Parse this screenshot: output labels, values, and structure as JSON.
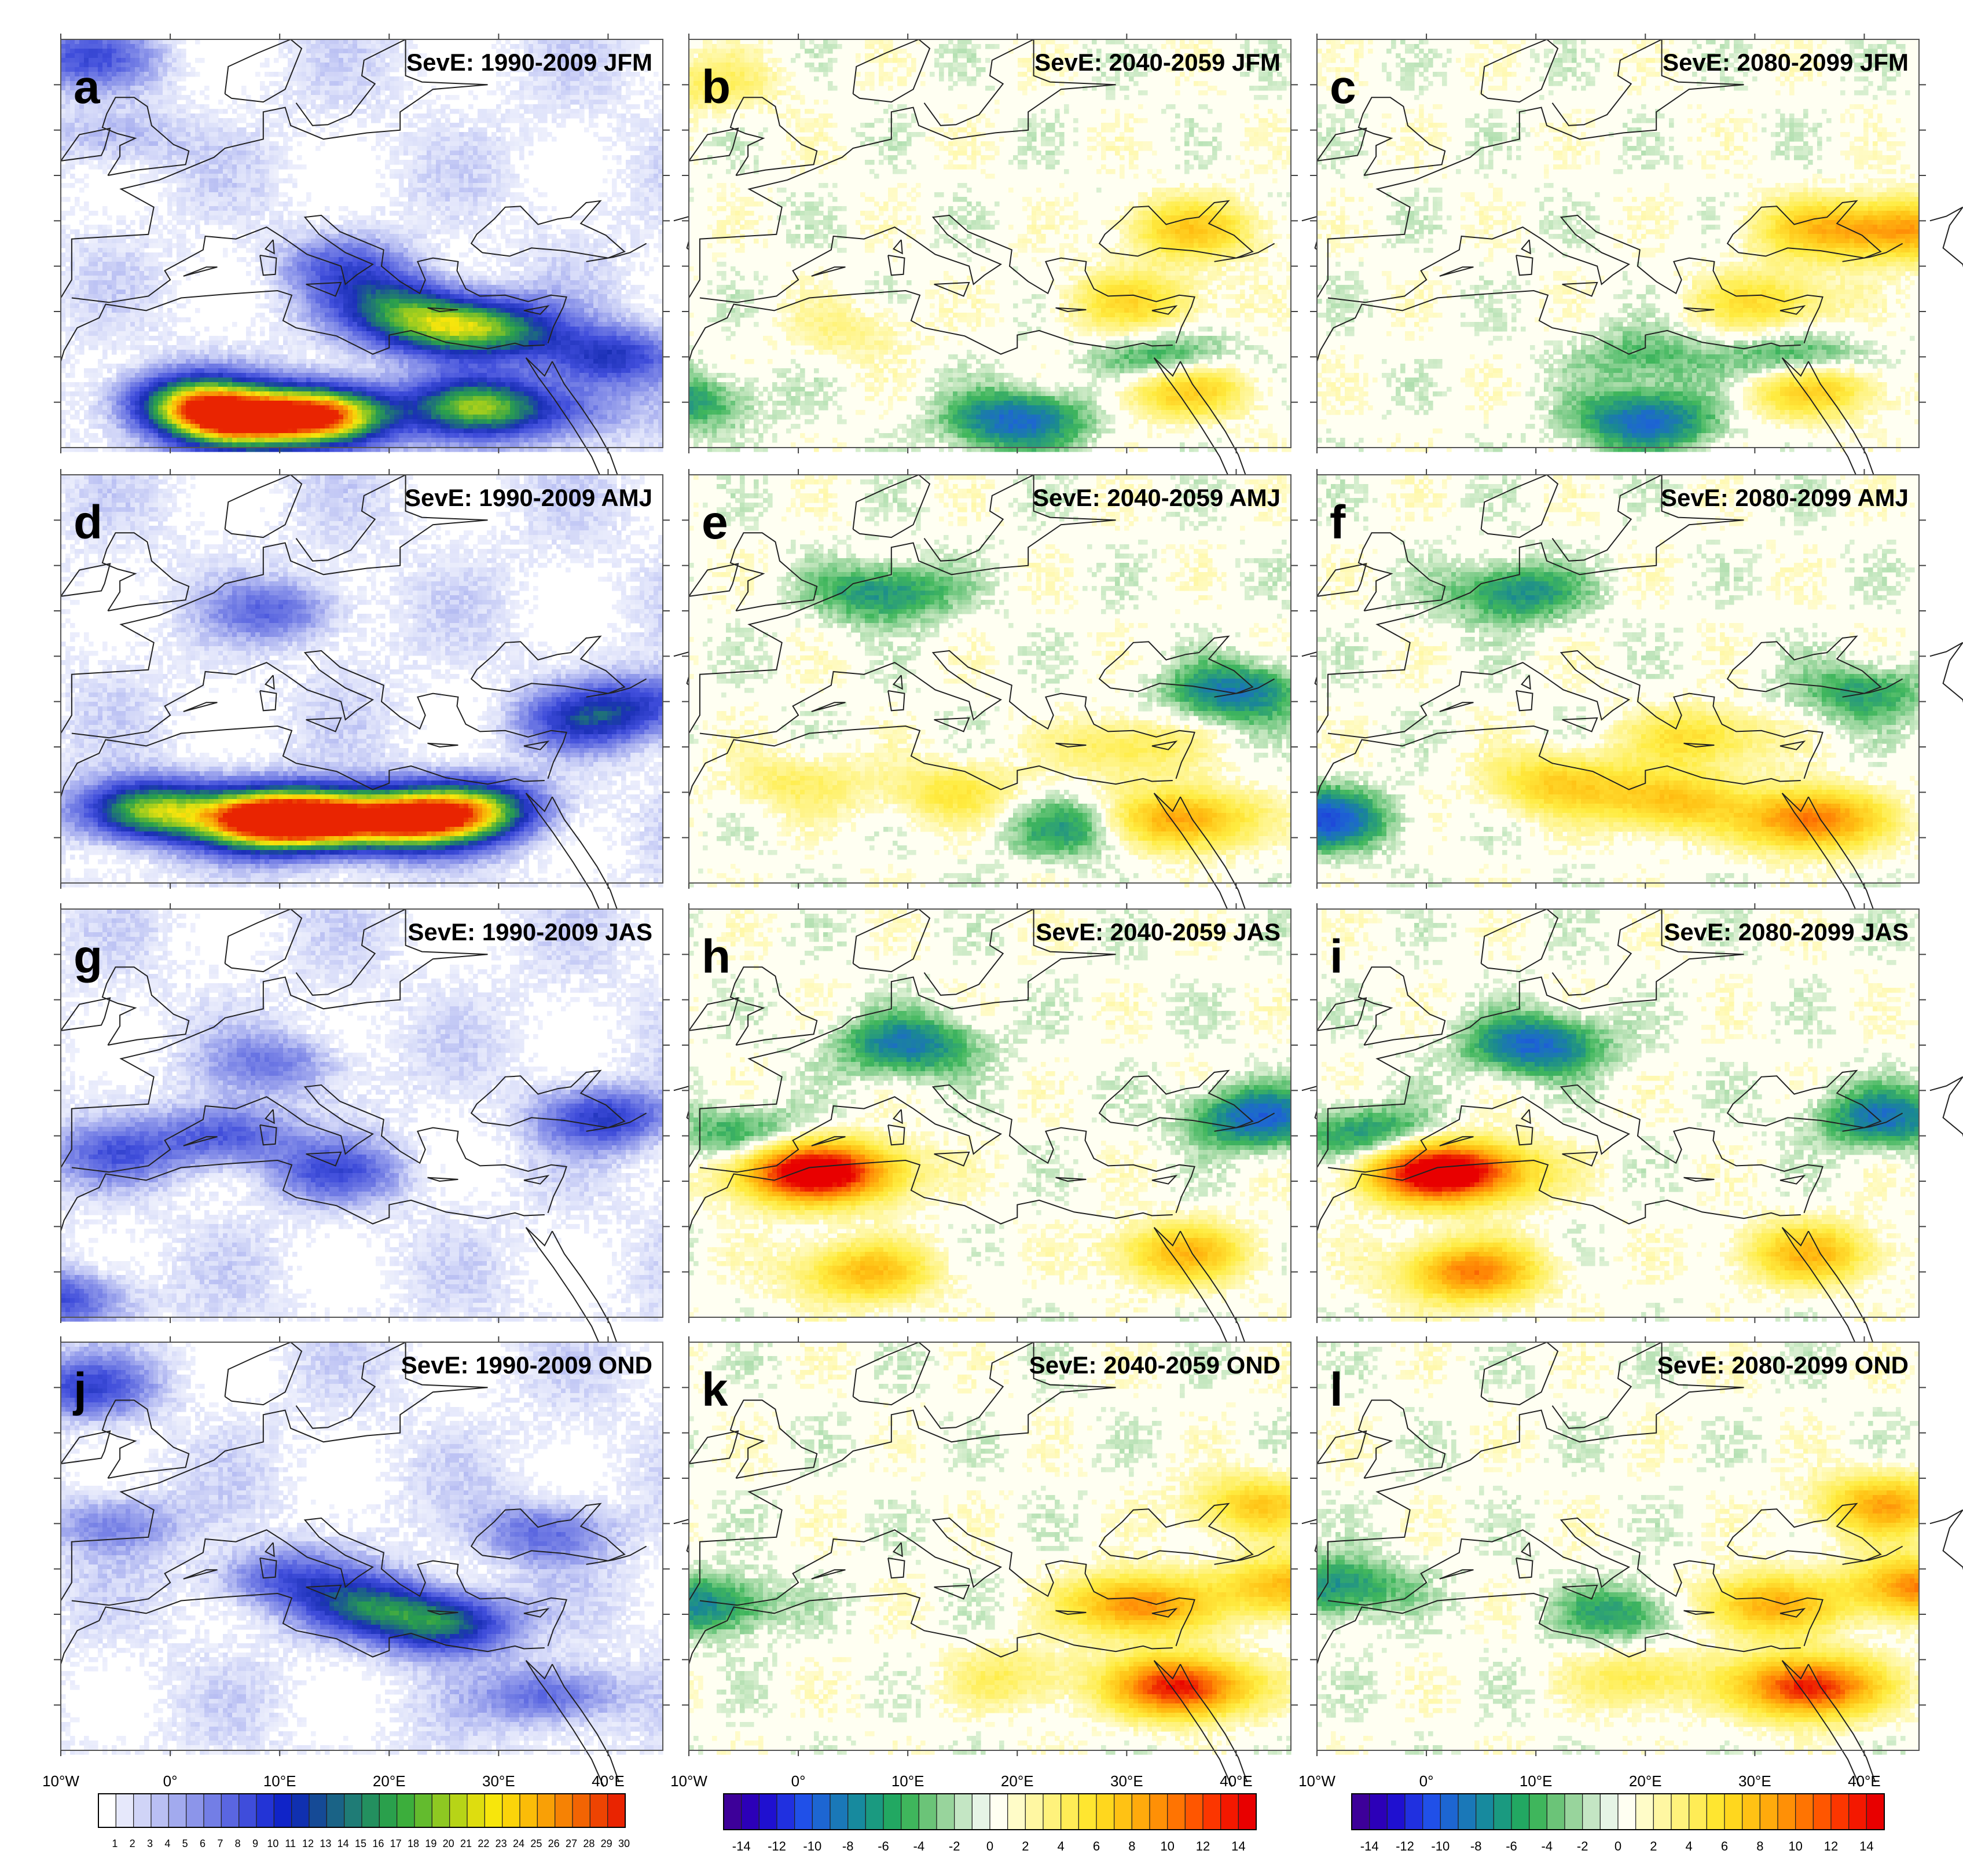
{
  "chart_data": [
    {
      "type": "heatmap",
      "letter": "a",
      "title": "SevE: 1990-2009 JFM",
      "period": "1990-2009",
      "season": "JFM",
      "field": "present",
      "palette": "seq",
      "hotspots": [
        {
          "lon": 6,
          "lat": 23,
          "v": 24
        },
        {
          "lon": 14,
          "lat": 23.5,
          "v": 29
        },
        {
          "lon": 2,
          "lat": 25,
          "v": 17
        },
        {
          "lon": 28,
          "lat": 24.5,
          "v": 17
        },
        {
          "lon": 24,
          "lat": 33.5,
          "v": 14
        },
        {
          "lon": 30,
          "lat": 33,
          "v": 13
        },
        {
          "lon": 20,
          "lat": 36,
          "v": 9
        },
        {
          "lon": 16,
          "lat": 40,
          "v": 6
        },
        {
          "lon": -8,
          "lat": 63,
          "v": 7
        },
        {
          "lon": -5,
          "lat": 54,
          "v": 3
        },
        {
          "lon": 40,
          "lat": 30,
          "v": 10
        },
        {
          "lon": 36,
          "lat": 24,
          "v": 6
        }
      ]
    },
    {
      "type": "heatmap",
      "letter": "b",
      "title": "SevE: 2040-2059 JFM",
      "period": "2040-2059",
      "season": "JFM",
      "field": "change",
      "palette": "div",
      "hotspots": [
        {
          "lon": -8,
          "lat": 60,
          "v": 3
        },
        {
          "lon": 35,
          "lat": 27,
          "v": 9
        },
        {
          "lon": 34,
          "lat": 29,
          "v": -7
        },
        {
          "lon": 36,
          "lat": 44,
          "v": 6
        },
        {
          "lon": 31,
          "lat": 36,
          "v": 5
        },
        {
          "lon": 20,
          "lat": 23,
          "v": -7
        },
        {
          "lon": -10,
          "lat": 25,
          "v": -4
        },
        {
          "lon": 5,
          "lat": 33,
          "v": 2
        }
      ]
    },
    {
      "type": "heatmap",
      "letter": "c",
      "title": "SevE: 2080-2099 JFM",
      "period": "2080-2099",
      "season": "JFM",
      "field": "change",
      "palette": "div",
      "hotspots": [
        {
          "lon": 35,
          "lat": 27,
          "v": 9
        },
        {
          "lon": 34,
          "lat": 29,
          "v": -7
        },
        {
          "lon": 36,
          "lat": 44,
          "v": 6
        },
        {
          "lon": 31,
          "lat": 36,
          "v": 5
        },
        {
          "lon": 20,
          "lat": 23,
          "v": -7
        },
        {
          "lon": 20,
          "lat": 30,
          "v": -3
        },
        {
          "lon": 44,
          "lat": 44,
          "v": 8
        }
      ]
    },
    {
      "type": "heatmap",
      "letter": "d",
      "title": "SevE: 1990-2009 AMJ",
      "period": "1990-2009",
      "season": "AMJ",
      "field": "present",
      "palette": "seq",
      "hotspots": [
        {
          "lon": 8,
          "lat": 27,
          "v": 26
        },
        {
          "lon": 14,
          "lat": 27,
          "v": 27
        },
        {
          "lon": 22,
          "lat": 27,
          "v": 25
        },
        {
          "lon": -2,
          "lat": 28,
          "v": 19
        },
        {
          "lon": 28,
          "lat": 28,
          "v": 17
        },
        {
          "lon": 10,
          "lat": 50,
          "v": 6
        },
        {
          "lon": 38,
          "lat": 38,
          "v": 9
        },
        {
          "lon": 44,
          "lat": 40,
          "v": 7
        }
      ]
    },
    {
      "type": "heatmap",
      "letter": "e",
      "title": "SevE: 2040-2059 AMJ",
      "period": "2040-2059",
      "season": "AMJ",
      "field": "change",
      "palette": "div",
      "hotspots": [
        {
          "lon": 8,
          "lat": 52,
          "v": -5
        },
        {
          "lon": 14,
          "lat": 30,
          "v": 4
        },
        {
          "lon": 0,
          "lat": 31,
          "v": 3
        },
        {
          "lon": 35,
          "lat": 27,
          "v": 9
        },
        {
          "lon": 25,
          "lat": 26,
          "v": -4
        },
        {
          "lon": 40,
          "lat": 41,
          "v": -6
        },
        {
          "lon": 30,
          "lat": 35,
          "v": 4
        }
      ]
    },
    {
      "type": "heatmap",
      "letter": "f",
      "title": "SevE: 2080-2099 AMJ",
      "period": "2080-2099",
      "season": "AMJ",
      "field": "change",
      "palette": "div",
      "hotspots": [
        {
          "lon": 8,
          "lat": 52,
          "v": -5
        },
        {
          "lon": 12,
          "lat": 31,
          "v": 6
        },
        {
          "lon": 22,
          "lat": 29,
          "v": 7
        },
        {
          "lon": 35,
          "lat": 27,
          "v": 11
        },
        {
          "lon": 25,
          "lat": 36,
          "v": 5
        },
        {
          "lon": -10,
          "lat": 27,
          "v": -8
        },
        {
          "lon": 40,
          "lat": 41,
          "v": -4
        }
      ]
    },
    {
      "type": "heatmap",
      "letter": "g",
      "title": "SevE: 1990-2009 JAS",
      "period": "1990-2009",
      "season": "JAS",
      "field": "present",
      "palette": "seq",
      "hotspots": [
        {
          "lon": 5,
          "lat": 40,
          "v": 8
        },
        {
          "lon": 15,
          "lat": 36,
          "v": 7
        },
        {
          "lon": 10,
          "lat": 48,
          "v": 5
        },
        {
          "lon": 40,
          "lat": 42,
          "v": 9
        },
        {
          "lon": -5,
          "lat": 38,
          "v": 6
        },
        {
          "lon": -10,
          "lat": 22,
          "v": 8
        }
      ]
    },
    {
      "type": "heatmap",
      "letter": "h",
      "title": "SevE: 2040-2059 JAS",
      "period": "2040-2059",
      "season": "JAS",
      "field": "change",
      "palette": "div",
      "hotspots": [
        {
          "lon": 0,
          "lat": 36,
          "v": 13
        },
        {
          "lon": 5,
          "lat": 36,
          "v": 7
        },
        {
          "lon": 10,
          "lat": 50,
          "v": -6
        },
        {
          "lon": 6,
          "lat": 25,
          "v": 7
        },
        {
          "lon": 42,
          "lat": 42,
          "v": -7
        },
        {
          "lon": 35,
          "lat": 27,
          "v": 7
        },
        {
          "lon": -5,
          "lat": 40,
          "v": -4
        }
      ]
    },
    {
      "type": "heatmap",
      "letter": "i",
      "title": "SevE: 2080-2099 JAS",
      "period": "2080-2099",
      "season": "JAS",
      "field": "change",
      "palette": "div",
      "hotspots": [
        {
          "lon": 0,
          "lat": 36,
          "v": 13
        },
        {
          "lon": 5,
          "lat": 36,
          "v": 8
        },
        {
          "lon": 10,
          "lat": 50,
          "v": -7
        },
        {
          "lon": 4,
          "lat": 25,
          "v": 10
        },
        {
          "lon": 42,
          "lat": 42,
          "v": -6
        },
        {
          "lon": 35,
          "lat": 27,
          "v": 7
        },
        {
          "lon": -5,
          "lat": 40,
          "v": -5
        }
      ]
    },
    {
      "type": "heatmap",
      "letter": "j",
      "title": "SevE: 1990-2009 OND",
      "period": "1990-2009",
      "season": "OND",
      "field": "present",
      "palette": "seq",
      "hotspots": [
        {
          "lon": 25,
          "lat": 34,
          "v": 14
        },
        {
          "lon": 18,
          "lat": 36,
          "v": 11
        },
        {
          "lon": -8,
          "lat": 60,
          "v": 8
        },
        {
          "lon": -5,
          "lat": 45,
          "v": 5
        },
        {
          "lon": 35,
          "lat": 26,
          "v": 7
        },
        {
          "lon": 34,
          "lat": 44,
          "v": 6
        },
        {
          "lon": 10,
          "lat": 39,
          "v": 7
        }
      ]
    },
    {
      "type": "heatmap",
      "letter": "k",
      "title": "SevE: 2040-2059 OND",
      "period": "2040-2059",
      "season": "OND",
      "field": "change",
      "palette": "div",
      "hotspots": [
        {
          "lon": 35,
          "lat": 27,
          "v": 14
        },
        {
          "lon": 31,
          "lat": 36,
          "v": 10
        },
        {
          "lon": -8,
          "lat": 36,
          "v": -5
        },
        {
          "lon": 45,
          "lat": 38,
          "v": 8
        },
        {
          "lon": 42,
          "lat": 47,
          "v": 6
        },
        {
          "lon": 20,
          "lat": 28,
          "v": 3
        }
      ]
    },
    {
      "type": "heatmap",
      "letter": "l",
      "title": "SevE: 2080-2099 OND",
      "period": "2080-2099",
      "season": "OND",
      "field": "change",
      "palette": "div",
      "hotspots": [
        {
          "lon": 35,
          "lat": 27,
          "v": 14
        },
        {
          "lon": 31,
          "lat": 36,
          "v": 8
        },
        {
          "lon": -8,
          "lat": 38,
          "v": -5
        },
        {
          "lon": 45,
          "lat": 38,
          "v": 10
        },
        {
          "lon": 42,
          "lat": 47,
          "v": 8
        },
        {
          "lon": 18,
          "lat": 35,
          "v": -4
        },
        {
          "lon": 20,
          "lat": 28,
          "v": 4
        }
      ]
    }
  ],
  "lon_ticks": [
    "10°W",
    "0°",
    "10°E",
    "20°E",
    "30°E",
    "40°E"
  ],
  "lon_values": [
    -10,
    0,
    10,
    20,
    30,
    40
  ],
  "lon_range": [
    -10,
    45
  ],
  "lat_range": [
    20,
    65
  ],
  "colorbar_seq": {
    "labels": [
      "1",
      "2",
      "3",
      "4",
      "5",
      "6",
      "7",
      "8",
      "9",
      "10",
      "11",
      "12",
      "13",
      "14",
      "15",
      "16",
      "17",
      "18",
      "19",
      "20",
      "21",
      "22",
      "23",
      "24",
      "25",
      "26",
      "27",
      "28",
      "29",
      "30"
    ],
    "colors": [
      "#ffffff",
      "#e6e8fb",
      "#d0d4f7",
      "#b9bff3",
      "#a2aaee",
      "#8c95ea",
      "#737ee6",
      "#5a66e1",
      "#3f4ddb",
      "#2334d6",
      "#1024c8",
      "#1030b0",
      "#154a96",
      "#1a6386",
      "#1f7c76",
      "#23905f",
      "#2aa04c",
      "#3cae3c",
      "#63bb2e",
      "#8ec822",
      "#b7d417",
      "#dedd0f",
      "#f7e60c",
      "#fbd40a",
      "#fbbc08",
      "#f9a006",
      "#f68204",
      "#f26403",
      "#ee4402",
      "#e92401"
    ]
  },
  "colorbar_div": {
    "labels": [
      "-14",
      "-12",
      "-10",
      "-8",
      "-6",
      "-4",
      "-2",
      "0",
      "2",
      "4",
      "6",
      "8",
      "10",
      "12",
      "14"
    ],
    "colors": [
      "#3d0099",
      "#2c00b8",
      "#1f10d0",
      "#2030e0",
      "#2050e8",
      "#1d66d2",
      "#1a78b8",
      "#178a9e",
      "#1a9a80",
      "#22a862",
      "#3fb65c",
      "#6bc478",
      "#98d49c",
      "#c4e6c4",
      "#e6f4e6",
      "#fffff2",
      "#fffcc8",
      "#fff7a2",
      "#fff27c",
      "#ffec56",
      "#ffe630",
      "#ffd71e",
      "#ffc214",
      "#ffaa0c",
      "#ff9006",
      "#ff7402",
      "#ff5600",
      "#fc3600",
      "#f41800",
      "#e80000"
    ]
  }
}
